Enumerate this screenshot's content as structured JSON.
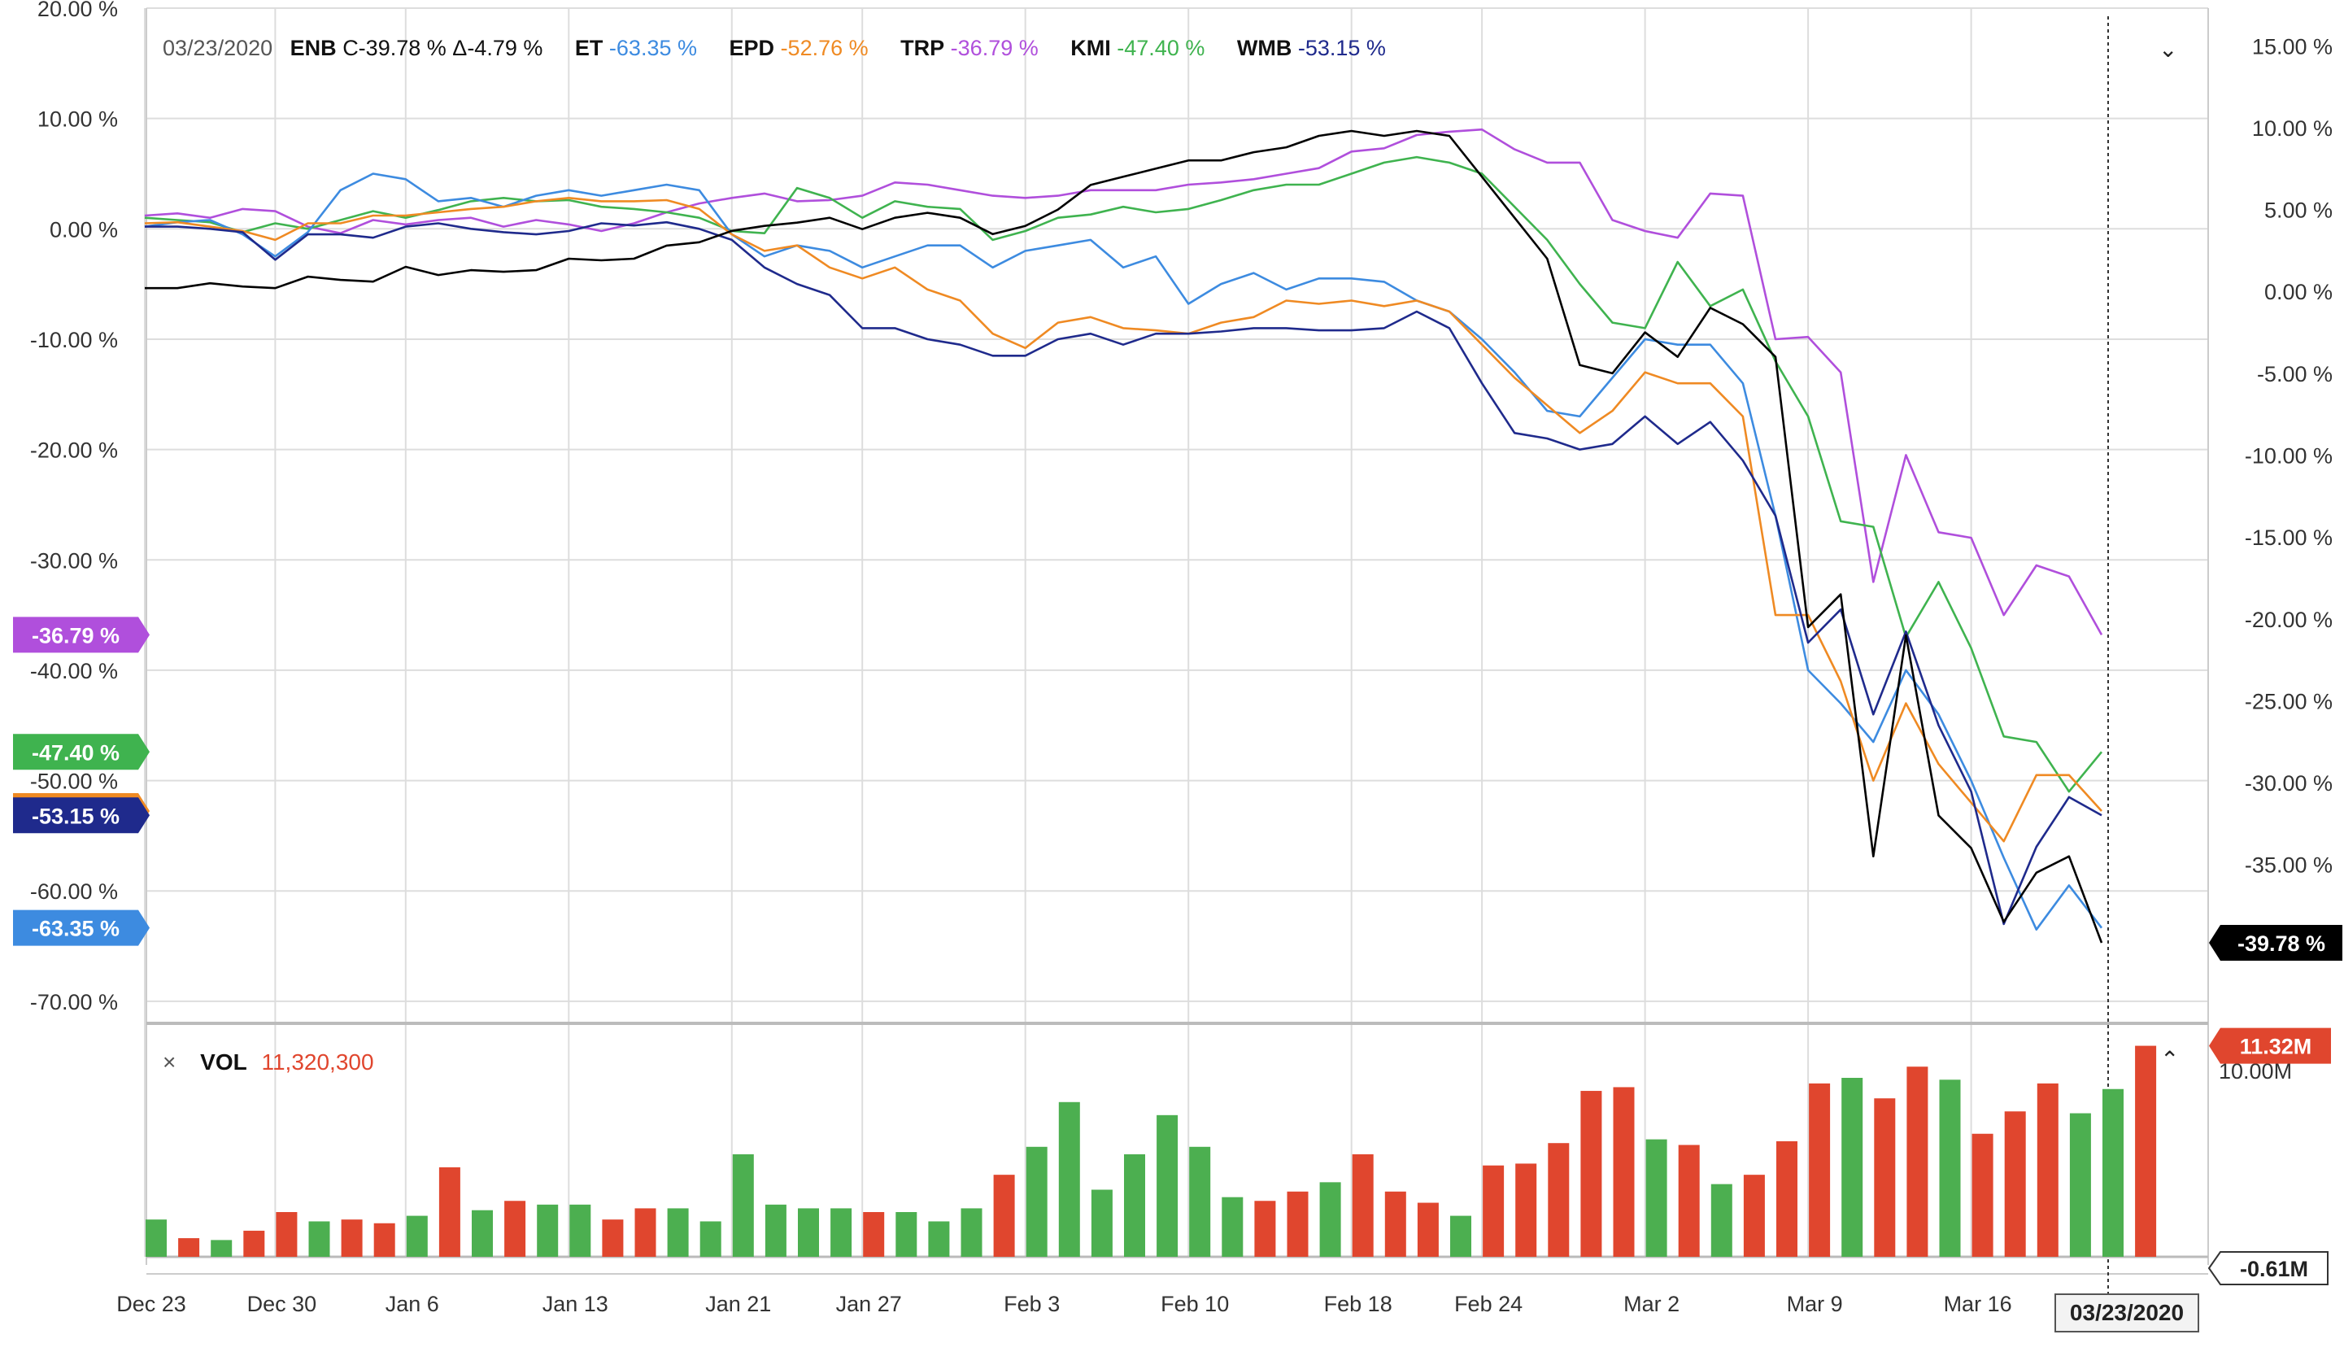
{
  "legend": {
    "date": "03/23/2020",
    "items": [
      {
        "symbol": "ENB",
        "value": "C-39.78 %",
        "extra": "Δ-4.79 %",
        "color": "#000000"
      },
      {
        "symbol": "ET",
        "value": "-63.35 %",
        "color": "#3d8be0"
      },
      {
        "symbol": "EPD",
        "value": "-52.76 %",
        "color": "#ef8a23"
      },
      {
        "symbol": "TRP",
        "value": "-36.79 %",
        "color": "#b04fdc"
      },
      {
        "symbol": "KMI",
        "value": "-47.40 %",
        "color": "#3fb34f"
      },
      {
        "symbol": "WMB",
        "value": "-53.15 %",
        "color": "#1f2a8c"
      }
    ]
  },
  "volume_legend": {
    "close_symbol": "×",
    "label": "VOL",
    "value": "11,320,300"
  },
  "icons": {
    "chevron_down": "chevron-down-icon",
    "chevron_up": "chevron-up-icon",
    "close": "close-icon"
  },
  "chart_data": {
    "type": "line",
    "x_tick_labels": [
      "Dec 23",
      "Dec 30",
      "Jan 6",
      "Jan 13",
      "Jan 21",
      "Jan 27",
      "Feb 3",
      "Feb 10",
      "Feb 18",
      "Feb 24",
      "Mar 2",
      "Mar 9",
      "Mar 16"
    ],
    "x_tick_index": [
      0,
      4,
      8,
      13,
      18,
      22,
      27,
      32,
      37,
      41,
      46,
      51,
      56
    ],
    "current_date_label": "03/23/2020",
    "left_axis": {
      "ticks": [
        "20.00 %",
        "10.00 %",
        "0.00 %",
        "-10.00 %",
        "-20.00 %",
        "-30.00 %",
        "-40.00 %",
        "-50.00 %",
        "-60.00 %",
        "-70.00 %"
      ],
      "range": [
        -72,
        20
      ]
    },
    "right_axis": {
      "ticks": [
        "15.00 %",
        "10.00 %",
        "5.00 %",
        "0.00 %",
        "-5.00 %",
        "-10.00 %",
        "-15.00 %",
        "-20.00 %",
        "-25.00 %",
        "-30.00 %",
        "-35.00 %"
      ],
      "range": [
        -44.7,
        17.3
      ]
    },
    "series": [
      {
        "name": "TRP",
        "color": "#b04fdc",
        "axis": "left",
        "marker_label": "-36.79 %",
        "values": [
          1.2,
          1.4,
          1.0,
          1.8,
          1.6,
          0.2,
          -0.4,
          0.8,
          0.4,
          0.8,
          1.0,
          0.2,
          0.8,
          0.4,
          -0.2,
          0.5,
          1.5,
          2.3,
          2.8,
          3.2,
          2.5,
          2.6,
          3.0,
          4.2,
          4.0,
          3.5,
          3.0,
          2.8,
          3.0,
          3.5,
          3.5,
          3.5,
          4.0,
          4.2,
          4.5,
          5.0,
          5.5,
          7.0,
          7.3,
          8.5,
          8.8,
          9.0,
          7.2,
          6.0,
          6.0,
          0.8,
          -0.2,
          -0.8,
          3.2,
          3.0,
          -10.0,
          -9.8,
          -13.0,
          -32.0,
          -20.5,
          -27.5,
          -28.0,
          -35.0,
          -30.5,
          -31.5,
          -36.79
        ]
      },
      {
        "name": "KMI",
        "color": "#3fb34f",
        "axis": "left",
        "marker_label": "-47.40 %",
        "values": [
          1.0,
          0.8,
          0.6,
          -0.3,
          0.5,
          0.0,
          0.8,
          1.6,
          1.0,
          1.7,
          2.5,
          2.8,
          2.5,
          2.6,
          2.0,
          1.8,
          1.5,
          1.0,
          -0.2,
          -0.4,
          3.7,
          2.8,
          1.0,
          2.5,
          2.0,
          1.8,
          -1.0,
          -0.2,
          1.0,
          1.3,
          2.0,
          1.5,
          1.8,
          2.6,
          3.5,
          4.0,
          4.0,
          5.0,
          6.0,
          6.5,
          6.0,
          5.0,
          2.0,
          -1.0,
          -5.0,
          -8.5,
          -9.0,
          -3.0,
          -7.0,
          -5.5,
          -12.0,
          -17.0,
          -26.5,
          -27.0,
          -37.0,
          -32.0,
          -38.0,
          -46.0,
          -46.5,
          -51.0,
          -47.4
        ]
      },
      {
        "name": "ET",
        "color": "#3d8be0",
        "axis": "left",
        "marker_label": "-63.35 %",
        "values": [
          0.2,
          0.6,
          0.8,
          -0.5,
          -2.5,
          -0.3,
          3.5,
          5.0,
          4.5,
          2.5,
          2.8,
          2.0,
          3.0,
          3.5,
          3.0,
          3.5,
          4.0,
          3.5,
          -0.5,
          -2.5,
          -1.5,
          -2.0,
          -3.5,
          -2.5,
          -1.5,
          -1.5,
          -3.5,
          -2.0,
          -1.5,
          -1.0,
          -3.5,
          -2.5,
          -6.8,
          -5.0,
          -4.0,
          -5.5,
          -4.5,
          -4.5,
          -4.8,
          -6.5,
          -7.5,
          -10.0,
          -13.0,
          -16.5,
          -17.0,
          -13.5,
          -10.0,
          -10.5,
          -10.5,
          -14.0,
          -26.0,
          -40.0,
          -43.0,
          -46.5,
          -40.0,
          -44.0,
          -50.0,
          -57.0,
          -63.5,
          -59.5,
          -63.35
        ]
      },
      {
        "name": "EPD",
        "color": "#ef8a23",
        "axis": "left",
        "marker_label": "-52.76 %",
        "values": [
          0.5,
          0.6,
          0.2,
          -0.2,
          -1.0,
          0.5,
          0.5,
          1.2,
          1.2,
          1.5,
          1.8,
          2.0,
          2.5,
          2.8,
          2.5,
          2.5,
          2.6,
          1.8,
          -0.5,
          -2.0,
          -1.5,
          -3.5,
          -4.5,
          -3.5,
          -5.5,
          -6.5,
          -9.5,
          -10.8,
          -8.5,
          -8.0,
          -9.0,
          -9.2,
          -9.5,
          -8.5,
          -8.0,
          -6.5,
          -6.8,
          -6.5,
          -7.0,
          -6.5,
          -7.5,
          -10.5,
          -13.5,
          -16.0,
          -18.5,
          -16.5,
          -13.0,
          -14.0,
          -14.0,
          -17.0,
          -35.0,
          -35.0,
          -41.0,
          -50.0,
          -43.0,
          -48.5,
          -52.0,
          -55.5,
          -49.5,
          -49.5,
          -52.76
        ]
      },
      {
        "name": "WMB",
        "color": "#1f2a8c",
        "axis": "left",
        "marker_label": "-53.15 %",
        "values": [
          0.2,
          0.2,
          0.0,
          -0.3,
          -2.8,
          -0.5,
          -0.5,
          -0.8,
          0.2,
          0.5,
          0.0,
          -0.3,
          -0.5,
          -0.2,
          0.5,
          0.3,
          0.6,
          0.0,
          -1.0,
          -3.5,
          -5.0,
          -6.0,
          -9.0,
          -9.0,
          -10.0,
          -10.5,
          -11.5,
          -11.5,
          -10.0,
          -9.5,
          -10.5,
          -9.5,
          -9.5,
          -9.3,
          -9.0,
          -9.0,
          -9.2,
          -9.2,
          -9.0,
          -7.5,
          -9.0,
          -14.0,
          -18.5,
          -19.0,
          -20.0,
          -19.5,
          -17.0,
          -19.5,
          -17.5,
          -21.0,
          -26.0,
          -37.5,
          -34.5,
          -44.0,
          -36.5,
          -45.0,
          -51.0,
          -63.0,
          -56.0,
          -51.5,
          -53.15
        ]
      },
      {
        "name": "ENB",
        "color": "#000000",
        "axis": "right",
        "marker_label": "-39.78 %",
        "values": [
          0.2,
          0.2,
          0.5,
          0.3,
          0.2,
          0.9,
          0.7,
          0.6,
          1.5,
          1.0,
          1.3,
          1.2,
          1.3,
          2.0,
          1.9,
          2.0,
          2.8,
          3.0,
          3.7,
          4.0,
          4.2,
          4.5,
          3.8,
          4.5,
          4.8,
          4.5,
          3.5,
          4.0,
          5.0,
          6.5,
          7.0,
          7.5,
          8.0,
          8.0,
          8.5,
          8.8,
          9.5,
          9.8,
          9.5,
          9.8,
          9.5,
          7.0,
          4.5,
          2.0,
          -4.5,
          -5.0,
          -2.5,
          -4.0,
          -1.0,
          -2.0,
          -4.0,
          -20.5,
          -18.5,
          -34.5,
          -21.0,
          -32.0,
          -34.0,
          -38.5,
          -35.5,
          -34.5,
          -39.78
        ]
      }
    ],
    "volume": {
      "ticks": [
        "10.00M"
      ],
      "last_label": "11.32M",
      "baseline_label": "-0.61M",
      "up_color": "#4caf50",
      "down_color": "#e0462e",
      "range": [
        0,
        12
      ],
      "values": [
        2.0,
        1.0,
        0.9,
        1.4,
        2.4,
        1.9,
        2.0,
        1.8,
        2.2,
        4.8,
        2.5,
        3.0,
        2.8,
        2.8,
        2.0,
        2.6,
        2.6,
        1.9,
        5.5,
        2.8,
        2.6,
        2.6,
        2.4,
        2.4,
        1.9,
        2.6,
        4.4,
        5.9,
        8.3,
        3.6,
        5.5,
        7.6,
        5.9,
        3.2,
        3.0,
        3.5,
        4.0,
        5.5,
        3.5,
        2.9,
        2.2,
        4.9,
        5.0,
        6.1,
        8.9,
        9.1,
        6.3,
        6.0,
        3.9,
        4.4,
        6.2,
        9.3,
        9.6,
        8.5,
        10.2,
        9.5,
        6.6,
        7.8,
        9.3,
        7.7,
        9.0,
        11.32
      ],
      "colors": [
        "g",
        "r",
        "g",
        "r",
        "r",
        "g",
        "r",
        "r",
        "g",
        "r",
        "g",
        "r",
        "g",
        "g",
        "r",
        "r",
        "g",
        "g",
        "g",
        "g",
        "g",
        "g",
        "r",
        "g",
        "g",
        "g",
        "r",
        "g",
        "g",
        "g",
        "g",
        "g",
        "g",
        "g",
        "r",
        "r",
        "g",
        "r",
        "r",
        "r",
        "g",
        "r",
        "r",
        "r",
        "r",
        "r",
        "g",
        "r",
        "g",
        "r",
        "r",
        "r",
        "g",
        "r",
        "r",
        "g",
        "r",
        "r",
        "r",
        "g",
        "g",
        "r"
      ]
    }
  }
}
